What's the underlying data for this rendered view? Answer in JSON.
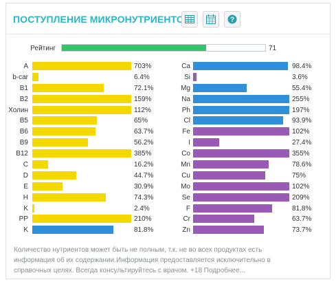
{
  "header": {
    "title": "ПОСТУПЛЕНИЕ МИКРОНУТРИЕНТОВ",
    "icons": [
      "table-icon",
      "calendar-icon",
      "help-icon"
    ],
    "accent": "#29b6c4"
  },
  "rating": {
    "label": "Рейтинг",
    "value": "71",
    "fraction": 0.71,
    "color": "#34c46a"
  },
  "colors": {
    "yellow": "#f4d800",
    "blue": "#2f8fd8",
    "purple": "#9b59b6"
  },
  "left": [
    {
      "label": "A",
      "value": "703%",
      "fill": 1.0,
      "color": "yellow"
    },
    {
      "label": "b-car",
      "value": "6.4%",
      "fill": 0.064,
      "color": "yellow"
    },
    {
      "label": "B1",
      "value": "72.1%",
      "fill": 0.721,
      "color": "yellow"
    },
    {
      "label": "B2",
      "value": "159%",
      "fill": 1.0,
      "color": "yellow"
    },
    {
      "label": "Холин",
      "value": "112%",
      "fill": 1.0,
      "color": "yellow"
    },
    {
      "label": "B5",
      "value": "65%",
      "fill": 0.65,
      "color": "yellow"
    },
    {
      "label": "B6",
      "value": "63.7%",
      "fill": 0.637,
      "color": "yellow"
    },
    {
      "label": "B9",
      "value": "56.2%",
      "fill": 0.562,
      "color": "yellow"
    },
    {
      "label": "B12",
      "value": "385%",
      "fill": 1.0,
      "color": "yellow"
    },
    {
      "label": "C",
      "value": "16.2%",
      "fill": 0.162,
      "color": "yellow"
    },
    {
      "label": "D",
      "value": "44.7%",
      "fill": 0.447,
      "color": "yellow"
    },
    {
      "label": "E",
      "value": "30.9%",
      "fill": 0.309,
      "color": "yellow"
    },
    {
      "label": "H",
      "value": "74.3%",
      "fill": 0.743,
      "color": "yellow"
    },
    {
      "label": "K",
      "value": "2.4%",
      "fill": 0.024,
      "color": "yellow"
    },
    {
      "label": "PP",
      "value": "210%",
      "fill": 1.0,
      "color": "yellow"
    },
    {
      "label": "K",
      "value": "81.8%",
      "fill": 0.818,
      "color": "blue"
    }
  ],
  "right": [
    {
      "label": "Ca",
      "value": "98.4%",
      "fill": 0.984,
      "color": "blue"
    },
    {
      "label": "Si",
      "value": "3.6%",
      "fill": 0.036,
      "color": "purple"
    },
    {
      "label": "Mg",
      "value": "55.4%",
      "fill": 0.554,
      "color": "blue"
    },
    {
      "label": "Na",
      "value": "255%",
      "fill": 1.0,
      "color": "blue"
    },
    {
      "label": "Ph",
      "value": "197%",
      "fill": 1.0,
      "color": "blue"
    },
    {
      "label": "Cl",
      "value": "93.9%",
      "fill": 0.939,
      "color": "blue"
    },
    {
      "label": "Fe",
      "value": "102%",
      "fill": 1.0,
      "color": "purple"
    },
    {
      "label": "I",
      "value": "27.4%",
      "fill": 0.274,
      "color": "purple"
    },
    {
      "label": "Co",
      "value": "355%",
      "fill": 1.0,
      "color": "purple"
    },
    {
      "label": "Mn",
      "value": "78.6%",
      "fill": 0.786,
      "color": "purple"
    },
    {
      "label": "Cu",
      "value": "75%",
      "fill": 0.75,
      "color": "purple"
    },
    {
      "label": "Mo",
      "value": "102%",
      "fill": 1.0,
      "color": "purple"
    },
    {
      "label": "Se",
      "value": "209%",
      "fill": 1.0,
      "color": "purple"
    },
    {
      "label": "F",
      "value": "81.8%",
      "fill": 0.818,
      "color": "purple"
    },
    {
      "label": "Cr",
      "value": "63.7%",
      "fill": 0.637,
      "color": "purple"
    },
    {
      "label": "Zn",
      "value": "73.7%",
      "fill": 0.737,
      "color": "purple"
    }
  ],
  "footer": {
    "note": "Количество нутриентов может быть не полным, т.к. не во всех продуктах есть информация об их содержании.Информация предоставляется исключительно в справочных целях. Всегда консультируйтесь с врачом. +18 Подробнее..."
  }
}
